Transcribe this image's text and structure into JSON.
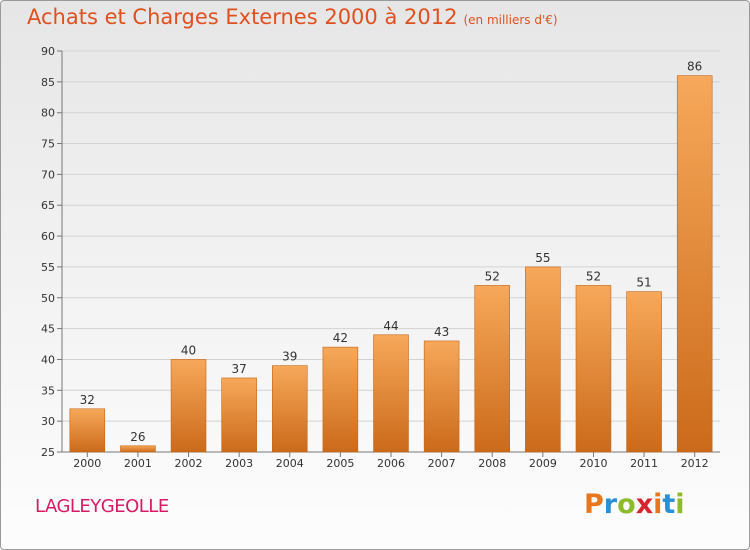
{
  "header": {
    "title": "Achats et Charges Externes 2000 à 2012",
    "unit": "(en milliers d'€)"
  },
  "footer": {
    "commune": "LAGLEYGEOLLE",
    "logo_letters": [
      "P",
      "r",
      "o",
      "x",
      "i",
      "t",
      "i"
    ]
  },
  "colors": {
    "title": "#e0501e",
    "commune": "#d81a64",
    "bar_light": "#f7a85a",
    "bar_dark": "#cb6a1a"
  },
  "chart_data": {
    "type": "bar",
    "title": "Achats et Charges Externes 2000 à 2012",
    "subtitle": "(en milliers d'€)",
    "categories": [
      "2000",
      "2001",
      "2002",
      "2003",
      "2004",
      "2005",
      "2006",
      "2007",
      "2008",
      "2009",
      "2010",
      "2011",
      "2012"
    ],
    "values": [
      32,
      26,
      40,
      37,
      39,
      42,
      44,
      43,
      52,
      55,
      52,
      51,
      86
    ],
    "ylim": [
      25,
      90
    ],
    "yticks": [
      25,
      30,
      35,
      40,
      45,
      50,
      55,
      60,
      65,
      70,
      75,
      80,
      85,
      90
    ],
    "grid": true,
    "xlabel": "",
    "ylabel": ""
  }
}
